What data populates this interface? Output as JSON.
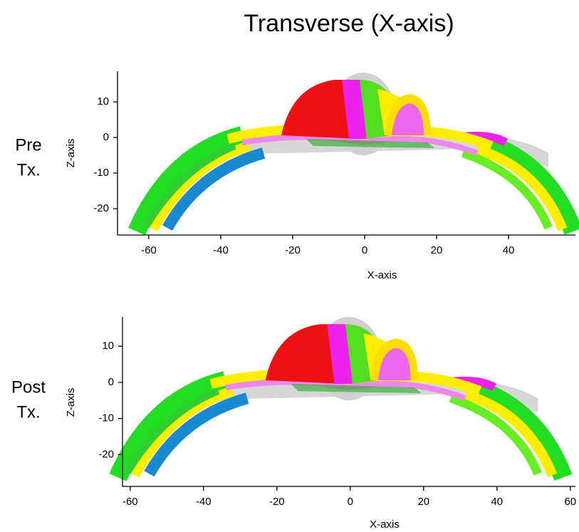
{
  "title": "Transverse (X-axis)",
  "chart_data": [
    {
      "type": "mesh",
      "row_label": [
        "Pre",
        "Tx."
      ],
      "xlabel": "X-axis",
      "ylabel": "Z-axis",
      "xlim": [
        -68.7,
        58.6
      ],
      "ylim": [
        -27.4,
        18.6
      ],
      "xticks": [
        -60,
        -40,
        -20,
        0,
        20,
        40
      ],
      "yticks": [
        -20,
        -10,
        0,
        10
      ]
    },
    {
      "type": "mesh",
      "row_label": [
        "Post",
        "Tx."
      ],
      "xlabel": "X-axis",
      "ylabel": "Z-axis",
      "xlim": [
        -62.1,
        61.4
      ],
      "ylim": [
        -28.8,
        18.1
      ],
      "xticks": [
        -60,
        -40,
        -20,
        0,
        20,
        40,
        60
      ],
      "yticks": [
        -20,
        -10,
        0,
        10
      ]
    }
  ]
}
